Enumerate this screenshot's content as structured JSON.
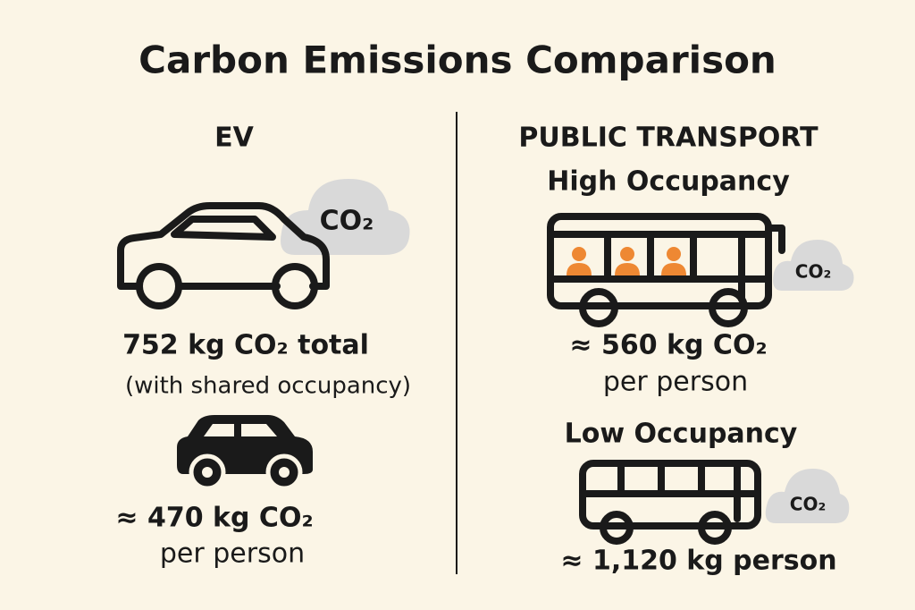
{
  "header": {
    "title": "Carbon Emissions Comparison"
  },
  "ev": {
    "heading": "EV",
    "cloud": "CO₂",
    "total": "752 kg CO₂ total",
    "note": "(with shared occupancy)",
    "per_person_value": "≈ 470 kg CO₂",
    "per_person_unit": "per person"
  },
  "public_transport": {
    "heading": "PUBLIC TRANSPORT",
    "high": {
      "label": "High Occupancy",
      "cloud": "CO₂",
      "value": "≈ 560 kg CO₂",
      "unit": "per person"
    },
    "low": {
      "label": "Low Occupancy",
      "cloud": "CO₂",
      "value": "≈ 1,120 kg person"
    }
  }
}
